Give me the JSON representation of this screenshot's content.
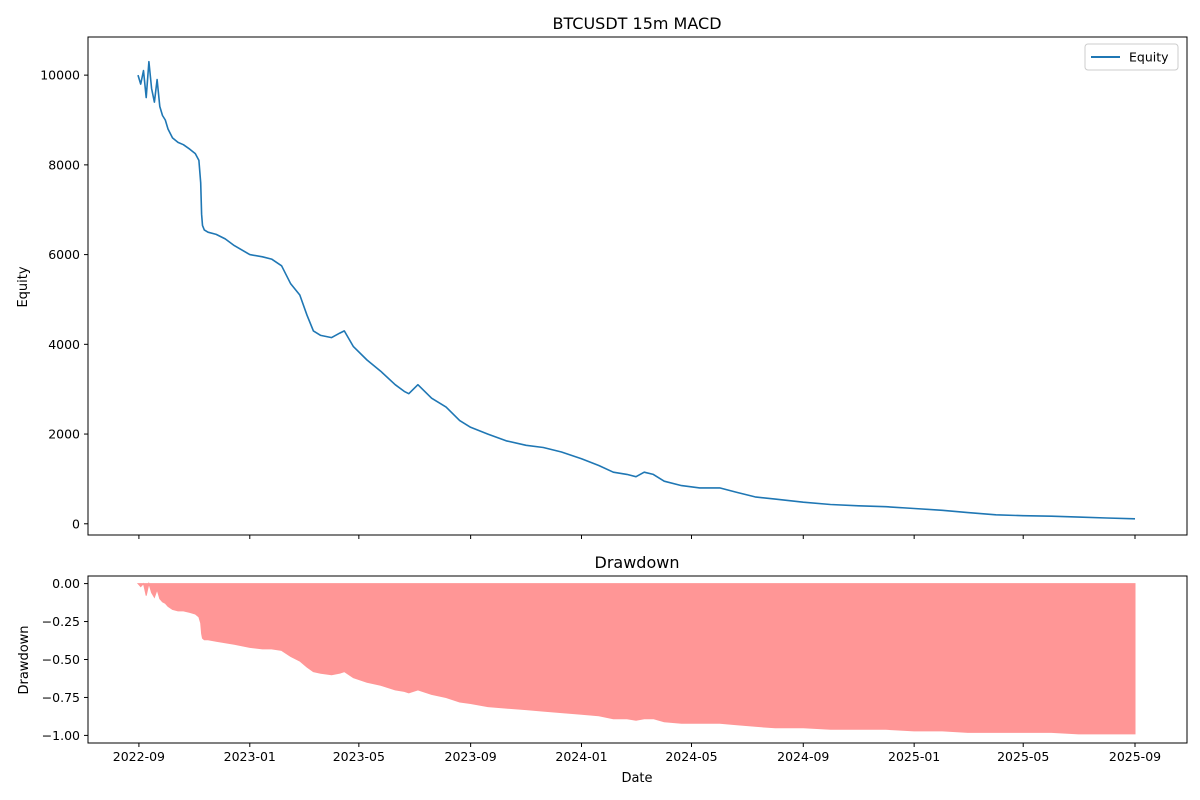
{
  "chart_data": [
    {
      "type": "line",
      "title": "BTCUSDT 15m MACD",
      "xlabel": "",
      "ylabel": "Equity",
      "ylim": [
        -250,
        10850
      ],
      "yticks": [
        0,
        2000,
        4000,
        6000,
        8000,
        10000
      ],
      "grid": false,
      "legend": "top-right",
      "series": [
        {
          "name": "Equity",
          "color": "#1f77b4",
          "x": [
            "2022-08-31",
            "2022-09-03",
            "2022-09-06",
            "2022-09-09",
            "2022-09-12",
            "2022-09-15",
            "2022-09-18",
            "2022-09-21",
            "2022-09-24",
            "2022-09-27",
            "2022-09-30",
            "2022-10-03",
            "2022-10-08",
            "2022-10-14",
            "2022-10-20",
            "2022-10-27",
            "2022-11-02",
            "2022-11-06",
            "2022-11-08",
            "2022-11-09",
            "2022-11-10",
            "2022-11-12",
            "2022-11-16",
            "2022-11-25",
            "2022-12-05",
            "2022-12-15",
            "2023-01-01",
            "2023-01-15",
            "2023-01-25",
            "2023-02-05",
            "2023-02-15",
            "2023-02-25",
            "2023-03-05",
            "2023-03-12",
            "2023-03-20",
            "2023-04-01",
            "2023-04-10",
            "2023-04-15",
            "2023-04-25",
            "2023-05-10",
            "2023-05-25",
            "2023-06-10",
            "2023-06-20",
            "2023-06-25",
            "2023-07-05",
            "2023-07-20",
            "2023-08-05",
            "2023-08-20",
            "2023-09-01",
            "2023-09-20",
            "2023-10-10",
            "2023-11-01",
            "2023-11-20",
            "2023-12-10",
            "2024-01-01",
            "2024-01-20",
            "2024-02-05",
            "2024-02-20",
            "2024-03-01",
            "2024-03-10",
            "2024-03-20",
            "2024-04-01",
            "2024-04-20",
            "2024-05-10",
            "2024-06-01",
            "2024-06-20",
            "2024-07-10",
            "2024-08-01",
            "2024-09-01",
            "2024-10-01",
            "2024-11-01",
            "2024-12-01",
            "2025-01-01",
            "2025-02-01",
            "2025-03-01",
            "2025-04-01",
            "2025-05-01",
            "2025-06-01",
            "2025-07-01",
            "2025-08-01",
            "2025-09-01"
          ],
          "values": [
            10000,
            9800,
            10100,
            9500,
            10300,
            9700,
            9400,
            9900,
            9300,
            9100,
            9000,
            8800,
            8600,
            8500,
            8450,
            8350,
            8250,
            8100,
            7600,
            6900,
            6650,
            6550,
            6500,
            6450,
            6350,
            6200,
            6000,
            5950,
            5900,
            5750,
            5350,
            5100,
            4650,
            4300,
            4200,
            4150,
            4250,
            4300,
            3950,
            3650,
            3400,
            3100,
            2950,
            2900,
            3100,
            2800,
            2600,
            2300,
            2150,
            2000,
            1850,
            1750,
            1700,
            1600,
            1450,
            1300,
            1150,
            1100,
            1050,
            1150,
            1100,
            950,
            850,
            800,
            800,
            700,
            600,
            550,
            480,
            430,
            400,
            380,
            340,
            300,
            250,
            200,
            180,
            170,
            150,
            130,
            110
          ]
        }
      ]
    },
    {
      "type": "area",
      "title": "Drawdown",
      "xlabel": "Date",
      "ylabel": "Drawdown",
      "ylim": [
        -1.05,
        0.05
      ],
      "yticks": [
        -1.0,
        -0.75,
        -0.5,
        -0.25,
        0.0
      ],
      "ytick_labels": [
        "−1.00",
        "−0.75",
        "−0.50",
        "−0.25",
        "0.00"
      ],
      "grid": false,
      "series": [
        {
          "color": "#ff9696",
          "x": [
            "2022-08-31",
            "2022-09-03",
            "2022-09-06",
            "2022-09-09",
            "2022-09-12",
            "2022-09-15",
            "2022-09-18",
            "2022-09-21",
            "2022-09-24",
            "2022-09-27",
            "2022-09-30",
            "2022-10-03",
            "2022-10-08",
            "2022-10-14",
            "2022-10-20",
            "2022-10-27",
            "2022-11-02",
            "2022-11-06",
            "2022-11-08",
            "2022-11-09",
            "2022-11-10",
            "2022-11-12",
            "2022-11-16",
            "2022-11-25",
            "2022-12-05",
            "2022-12-15",
            "2023-01-01",
            "2023-01-15",
            "2023-01-25",
            "2023-02-05",
            "2023-02-15",
            "2023-02-25",
            "2023-03-05",
            "2023-03-12",
            "2023-03-20",
            "2023-04-01",
            "2023-04-10",
            "2023-04-15",
            "2023-04-25",
            "2023-05-10",
            "2023-05-25",
            "2023-06-10",
            "2023-06-20",
            "2023-06-25",
            "2023-07-05",
            "2023-07-20",
            "2023-08-05",
            "2023-08-20",
            "2023-09-01",
            "2023-09-20",
            "2023-10-10",
            "2023-11-01",
            "2023-11-20",
            "2023-12-10",
            "2024-01-01",
            "2024-01-20",
            "2024-02-05",
            "2024-02-20",
            "2024-03-01",
            "2024-03-10",
            "2024-03-20",
            "2024-04-01",
            "2024-04-20",
            "2024-05-10",
            "2024-06-01",
            "2024-06-20",
            "2024-07-10",
            "2024-08-01",
            "2024-09-01",
            "2024-10-01",
            "2024-11-01",
            "2024-12-01",
            "2025-01-01",
            "2025-02-01",
            "2025-03-01",
            "2025-04-01",
            "2025-05-01",
            "2025-06-01",
            "2025-07-01",
            "2025-08-01",
            "2025-09-01"
          ],
          "values": [
            0,
            -0.02,
            0,
            -0.08,
            0,
            -0.06,
            -0.09,
            -0.04,
            -0.1,
            -0.12,
            -0.13,
            -0.15,
            -0.17,
            -0.18,
            -0.18,
            -0.19,
            -0.2,
            -0.22,
            -0.26,
            -0.33,
            -0.36,
            -0.37,
            -0.37,
            -0.38,
            -0.39,
            -0.4,
            -0.42,
            -0.43,
            -0.43,
            -0.44,
            -0.48,
            -0.51,
            -0.55,
            -0.58,
            -0.59,
            -0.6,
            -0.59,
            -0.58,
            -0.62,
            -0.65,
            -0.67,
            -0.7,
            -0.71,
            -0.72,
            -0.7,
            -0.73,
            -0.75,
            -0.78,
            -0.79,
            -0.81,
            -0.82,
            -0.83,
            -0.84,
            -0.85,
            -0.86,
            -0.87,
            -0.89,
            -0.89,
            -0.9,
            -0.89,
            -0.89,
            -0.91,
            -0.92,
            -0.92,
            -0.92,
            -0.93,
            -0.94,
            -0.95,
            -0.95,
            -0.96,
            -0.96,
            -0.96,
            -0.97,
            -0.97,
            -0.98,
            -0.98,
            -0.98,
            -0.98,
            -0.99,
            -0.99,
            -0.99
          ]
        }
      ]
    }
  ],
  "xticks": [
    "2022-09",
    "2023-01",
    "2023-05",
    "2023-09",
    "2024-01",
    "2024-05",
    "2024-09",
    "2025-01",
    "2025-05",
    "2025-09"
  ]
}
